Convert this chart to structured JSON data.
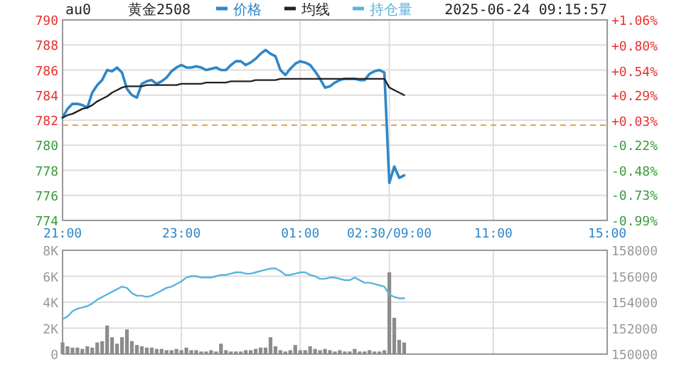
{
  "chart_data": [
    {
      "type": "line",
      "title": "黄金2508",
      "subtitle": "2025-06-24 09:15:57",
      "annotations": [
        "au0"
      ],
      "legend": "top",
      "grid": true,
      "categories": [
        "21:00",
        null,
        null,
        null,
        null,
        null,
        null,
        null,
        null,
        null,
        null,
        null,
        null,
        null,
        null,
        null,
        null,
        null,
        null,
        null,
        null,
        null,
        null,
        null,
        "23:00",
        null,
        null,
        null,
        null,
        null,
        null,
        null,
        null,
        null,
        null,
        null,
        null,
        null,
        null,
        null,
        null,
        null,
        null,
        null,
        null,
        null,
        null,
        null,
        "01:00",
        null,
        null,
        null,
        null,
        null,
        null,
        null,
        null,
        null,
        null,
        null,
        null,
        null,
        null,
        null,
        null,
        null,
        "02:30/09:00",
        null,
        null,
        null,
        null,
        null,
        null,
        null,
        null,
        null,
        null,
        null,
        null,
        null,
        null,
        null,
        null,
        null,
        null,
        null,
        null,
        "11:00",
        null,
        null,
        null,
        null,
        null,
        null,
        null,
        null,
        null,
        null,
        null,
        null,
        null,
        null,
        null,
        null,
        null,
        null,
        null,
        null,
        null,
        null,
        "15:00"
      ],
      "ylim": [
        774,
        790
      ],
      "yticks": [
        774,
        776,
        778,
        780,
        782,
        784,
        786,
        788,
        790
      ],
      "y2lim": [
        -0.99,
        1.06
      ],
      "y2ticks": [
        {
          "value": 1.06,
          "label": "+1.06%"
        },
        {
          "value": 0.8,
          "label": "+0.80%"
        },
        {
          "value": 0.54,
          "label": "+0.54%"
        },
        {
          "value": 0.29,
          "label": "+0.29%"
        },
        {
          "value": 0.03,
          "label": "+0.03%"
        },
        {
          "value": -0.22,
          "label": "-0.22%"
        },
        {
          "value": -0.48,
          "label": "-0.48%"
        },
        {
          "value": -0.73,
          "label": "-0.73%"
        },
        {
          "value": -0.99,
          "label": "-0.99%"
        }
      ],
      "ref_lines": [
        {
          "axis": "y",
          "value": 781.6,
          "color": "#f0a040",
          "line_style": "dashed"
        }
      ],
      "series": [
        {
          "name": "价格",
          "color": "#2e86c8",
          "values": [
            782.2,
            782.9,
            783.3,
            783.3,
            783.2,
            783.0,
            784.2,
            784.8,
            785.2,
            786.0,
            785.9,
            786.2,
            785.8,
            784.5,
            784.0,
            783.8,
            784.9,
            785.1,
            785.2,
            784.9,
            785.1,
            785.4,
            785.9,
            786.2,
            786.4,
            786.2,
            786.2,
            786.3,
            786.2,
            786.0,
            786.1,
            786.2,
            786.0,
            786.0,
            786.4,
            786.7,
            786.7,
            786.4,
            786.6,
            786.9,
            787.3,
            787.6,
            787.3,
            787.1,
            786.0,
            785.6,
            786.1,
            786.5,
            786.7,
            786.6,
            786.4,
            785.9,
            785.3,
            784.6,
            784.7,
            785.0,
            785.2,
            785.3,
            785.3,
            785.3,
            785.2,
            785.2,
            785.7,
            785.9,
            786.0,
            785.8,
            777.0,
            778.3,
            777.4,
            777.6,
            null,
            null,
            null,
            null,
            null,
            null,
            null,
            null,
            null,
            null,
            null,
            null,
            null,
            null,
            null,
            null,
            null,
            null,
            null,
            null,
            null,
            null,
            null,
            null,
            null,
            null,
            null,
            null,
            null,
            null,
            null,
            null,
            null,
            null,
            null,
            null,
            null,
            null,
            null,
            null,
            null
          ]
        },
        {
          "name": "均线",
          "color": "#222222",
          "values": [
            782.2,
            782.4,
            782.5,
            782.7,
            782.9,
            783.0,
            783.2,
            783.5,
            783.7,
            783.9,
            784.2,
            784.4,
            784.6,
            784.7,
            784.7,
            784.7,
            784.7,
            784.8,
            784.8,
            784.8,
            784.8,
            784.8,
            784.8,
            784.8,
            784.9,
            784.9,
            784.9,
            784.9,
            784.9,
            785.0,
            785.0,
            785.0,
            785.0,
            785.0,
            785.1,
            785.1,
            785.1,
            785.1,
            785.1,
            785.2,
            785.2,
            785.2,
            785.2,
            785.2,
            785.3,
            785.3,
            785.3,
            785.3,
            785.3,
            785.3,
            785.3,
            785.3,
            785.3,
            785.3,
            785.3,
            785.3,
            785.3,
            785.3,
            785.3,
            785.3,
            785.3,
            785.3,
            785.3,
            785.3,
            785.3,
            785.3,
            784.6,
            784.4,
            784.2,
            784.0,
            null,
            null,
            null,
            null,
            null,
            null,
            null,
            null,
            null,
            null,
            null,
            null,
            null,
            null,
            null,
            null,
            null,
            null,
            null,
            null,
            null,
            null,
            null,
            null,
            null,
            null,
            null,
            null,
            null,
            null,
            null,
            null,
            null,
            null,
            null,
            null,
            null,
            null,
            null,
            null,
            null
          ]
        }
      ]
    },
    {
      "type": "bar",
      "grid": true,
      "tick_labels": "y",
      "legend": "top",
      "categories": [
        null,
        null,
        null,
        null,
        null,
        null,
        null,
        null,
        null,
        null,
        null,
        null,
        null,
        null,
        null,
        null,
        null,
        null,
        null,
        null,
        null,
        null,
        null,
        null,
        null,
        null,
        null,
        null,
        null,
        null,
        null,
        null,
        null,
        null,
        null,
        null,
        null,
        null,
        null,
        null,
        null,
        null,
        null,
        null,
        null,
        null,
        null,
        null,
        null,
        null,
        null,
        null,
        null,
        null,
        null,
        null,
        null,
        null,
        null,
        null,
        null,
        null,
        null,
        null,
        null,
        null,
        null,
        null,
        null,
        null,
        null,
        null,
        null,
        null,
        null,
        null,
        null,
        null,
        null,
        null,
        null,
        null,
        null,
        null,
        null,
        null,
        null,
        null,
        null,
        null,
        null,
        null,
        null,
        null,
        null,
        null,
        null,
        null,
        null,
        null,
        null,
        null,
        null,
        null,
        null,
        null,
        null,
        null,
        null,
        null,
        null
      ],
      "ylim": [
        0,
        8000
      ],
      "yticks": [
        0,
        {
          "value": 2000,
          "label": "2K"
        },
        {
          "value": 4000,
          "label": "4K"
        },
        {
          "value": 6000,
          "label": "6K"
        },
        {
          "value": 8000,
          "label": "8K"
        }
      ],
      "y2lim": [
        150000,
        158000
      ],
      "y2ticks": [
        150000,
        152000,
        154000,
        156000,
        158000
      ],
      "series": [
        {
          "color": "#8c8c8c",
          "values": [
            900,
            600,
            500,
            500,
            400,
            600,
            500,
            900,
            1000,
            2200,
            1300,
            800,
            1300,
            1900,
            1000,
            700,
            600,
            500,
            500,
            400,
            400,
            300,
            300,
            400,
            300,
            500,
            300,
            300,
            200,
            200,
            300,
            200,
            800,
            300,
            200,
            200,
            200,
            300,
            300,
            400,
            500,
            500,
            1300,
            600,
            300,
            200,
            300,
            700,
            300,
            300,
            600,
            400,
            300,
            400,
            300,
            200,
            300,
            200,
            200,
            400,
            200,
            200,
            300,
            200,
            200,
            300,
            6300,
            2800,
            1100,
            900,
            null,
            null,
            null,
            null,
            null,
            null,
            null,
            null,
            null,
            null,
            null,
            null,
            null,
            null,
            null,
            null,
            null,
            null,
            null,
            null,
            null,
            null,
            null,
            null,
            null,
            null,
            null,
            null,
            null,
            null,
            null,
            null,
            null,
            null,
            null,
            null,
            null,
            null,
            null,
            null,
            null
          ]
        },
        {
          "name": "持仓量",
          "type": "line",
          "axis": "y2",
          "color": "#5ab4dc",
          "values": [
            152700,
            152900,
            153300,
            153500,
            153600,
            153700,
            153900,
            154200,
            154400,
            154600,
            154800,
            155000,
            155200,
            155100,
            154700,
            154500,
            154500,
            154400,
            154500,
            154700,
            154900,
            155100,
            155200,
            155400,
            155600,
            155900,
            156000,
            156000,
            155900,
            155900,
            155900,
            156000,
            156100,
            156100,
            156200,
            156300,
            156300,
            156200,
            156200,
            156300,
            156400,
            156500,
            156600,
            156600,
            156400,
            156100,
            156100,
            156200,
            156300,
            156300,
            156100,
            156000,
            155800,
            155800,
            155900,
            155900,
            155800,
            155700,
            155700,
            155900,
            155700,
            155500,
            155500,
            155400,
            155300,
            155200,
            154600,
            154400,
            154300,
            154300,
            null,
            null,
            null,
            null,
            null,
            null,
            null,
            null,
            null,
            null,
            null,
            null,
            null,
            null,
            null,
            null,
            null,
            null,
            null,
            null,
            null,
            null,
            null,
            null,
            null,
            null,
            null,
            null,
            null,
            null,
            null,
            null,
            null,
            null,
            null,
            null,
            null,
            null,
            null,
            null,
            null
          ]
        }
      ]
    }
  ]
}
